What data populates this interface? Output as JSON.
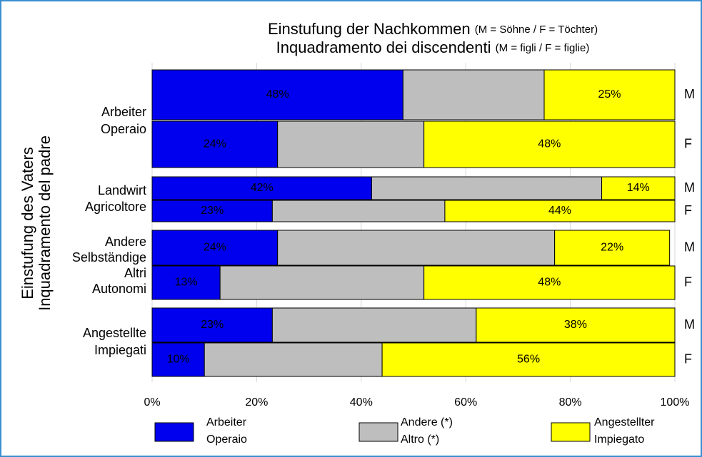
{
  "chart_data": {
    "type": "stacked-bar-horizontal",
    "title": [
      [
        "Einstufung der Nachkommen",
        "(M = Söhne / F = Töchter)"
      ],
      [
        "Inquadramento dei discendenti",
        "(M = figli / F = figlie)"
      ]
    ],
    "y_label": [
      "Einstufung des Vaters",
      "Inquadramento del padre"
    ],
    "groups": [
      [
        "Arbeiter",
        "Operaio"
      ],
      [
        "Landwirt",
        "Agricoltore"
      ],
      [
        "Andere",
        "Selbständige",
        "Altri",
        "Autonomi"
      ],
      [
        "Angestellte",
        "Impiegati"
      ]
    ],
    "categories": [
      "M",
      "F",
      "M",
      "F",
      "M",
      "F",
      "M",
      "F"
    ],
    "series": [
      {
        "name": [
          "Arbeiter",
          "Operaio"
        ],
        "color": "#0000ee",
        "values": [
          48,
          24,
          42,
          23,
          24,
          13,
          23,
          10
        ],
        "value_labels": [
          "48%",
          "24%",
          "42%",
          "23%",
          "24%",
          "13%",
          "23%",
          "10%"
        ]
      },
      {
        "name": [
          "Andere (*)",
          "Altro (*)"
        ],
        "color": "#bebebe",
        "values": [
          27,
          28,
          44,
          33,
          53,
          39,
          39,
          34
        ]
      },
      {
        "name": [
          "Angestellter",
          "Impiegato"
        ],
        "color": "#ffff00",
        "values": [
          25,
          48,
          14,
          44,
          22,
          48,
          38,
          56
        ],
        "value_labels": [
          "25%",
          "48%",
          "14%",
          "44%",
          "22%",
          "48%",
          "38%",
          "56%"
        ]
      }
    ],
    "xlim": [
      0,
      100
    ],
    "xticks": [
      {
        "value": 0,
        "label": "0%"
      },
      {
        "value": 20,
        "label": "20%"
      },
      {
        "value": 40,
        "label": "40%"
      },
      {
        "value": 60,
        "label": "60%"
      },
      {
        "value": 80,
        "label": "80%"
      },
      {
        "value": 100,
        "label": "100%"
      }
    ],
    "grid": true
  }
}
